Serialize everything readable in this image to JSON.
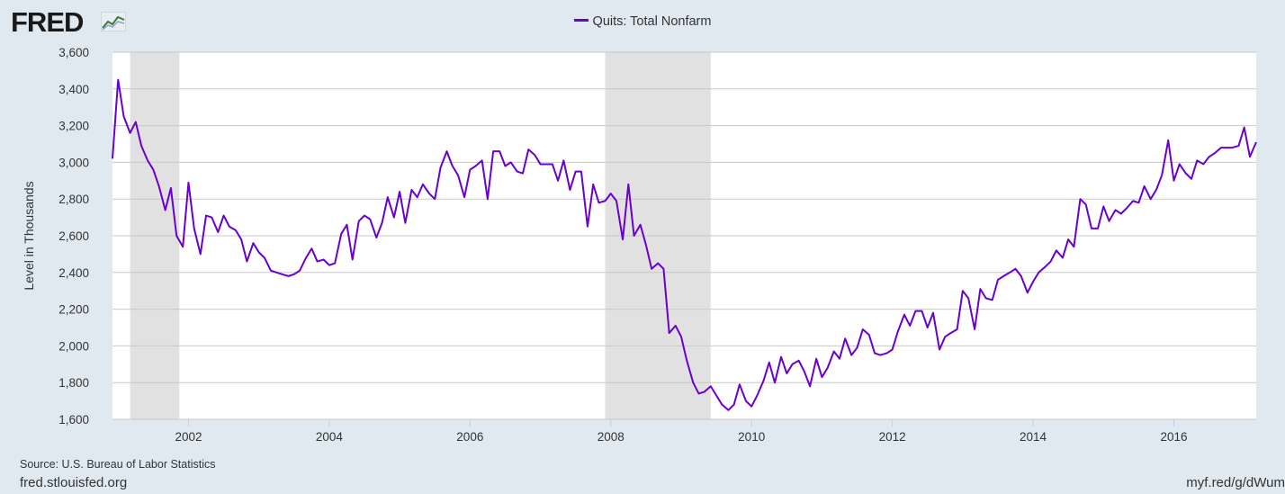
{
  "brand": {
    "logo_text": "FRED",
    "site": "fred.stlouisfed.org",
    "short_link": "myf.red/g/dWum"
  },
  "source_note": "Source: U.S. Bureau of Labor Statistics",
  "colors": {
    "series": "#6a00cc",
    "recession": "#e1e1e1",
    "background": "#e1e9f0",
    "plot": "#ffffff",
    "grid": "#c8c8c8"
  },
  "chart_data": {
    "type": "line",
    "title": "",
    "ylabel": "Level in Thousands",
    "xlabel": "",
    "ylim": [
      1600,
      3600
    ],
    "xlim": [
      2000.92,
      2017.17
    ],
    "yticks": [
      "1,600",
      "1,800",
      "2,000",
      "2,200",
      "2,400",
      "2,600",
      "2,800",
      "3,000",
      "3,200",
      "3,400",
      "3,600"
    ],
    "ytick_values": [
      1600,
      1800,
      2000,
      2200,
      2400,
      2600,
      2800,
      3000,
      3200,
      3400,
      3600
    ],
    "xticks": [
      "2002",
      "2004",
      "2006",
      "2008",
      "2010",
      "2012",
      "2014",
      "2016"
    ],
    "xtick_values": [
      2002,
      2004,
      2006,
      2008,
      2010,
      2012,
      2014,
      2016
    ],
    "grid": "horizontal",
    "legend_placement": "top-center",
    "recessions": [
      [
        2001.17,
        2001.87
      ],
      [
        2007.92,
        2009.42
      ]
    ],
    "series": [
      {
        "name": "Quits: Total Nonfarm",
        "x": [
          2000.92,
          2001.0,
          2001.08,
          2001.17,
          2001.25,
          2001.33,
          2001.42,
          2001.5,
          2001.58,
          2001.67,
          2001.75,
          2001.83,
          2001.92,
          2002.0,
          2002.08,
          2002.17,
          2002.25,
          2002.33,
          2002.42,
          2002.5,
          2002.58,
          2002.67,
          2002.75,
          2002.83,
          2002.92,
          2003.0,
          2003.08,
          2003.17,
          2003.25,
          2003.33,
          2003.42,
          2003.5,
          2003.58,
          2003.67,
          2003.75,
          2003.83,
          2003.92,
          2004.0,
          2004.08,
          2004.17,
          2004.25,
          2004.33,
          2004.42,
          2004.5,
          2004.58,
          2004.67,
          2004.75,
          2004.83,
          2004.92,
          2005.0,
          2005.08,
          2005.17,
          2005.25,
          2005.33,
          2005.42,
          2005.5,
          2005.58,
          2005.67,
          2005.75,
          2005.83,
          2005.92,
          2006.0,
          2006.08,
          2006.17,
          2006.25,
          2006.33,
          2006.42,
          2006.5,
          2006.58,
          2006.67,
          2006.75,
          2006.83,
          2006.92,
          2007.0,
          2007.08,
          2007.17,
          2007.25,
          2007.33,
          2007.42,
          2007.5,
          2007.58,
          2007.67,
          2007.75,
          2007.83,
          2007.92,
          2008.0,
          2008.08,
          2008.17,
          2008.25,
          2008.33,
          2008.42,
          2008.5,
          2008.58,
          2008.67,
          2008.75,
          2008.83,
          2008.92,
          2009.0,
          2009.08,
          2009.17,
          2009.25,
          2009.33,
          2009.42,
          2009.5,
          2009.58,
          2009.67,
          2009.75,
          2009.83,
          2009.92,
          2010.0,
          2010.08,
          2010.17,
          2010.25,
          2010.33,
          2010.42,
          2010.5,
          2010.58,
          2010.67,
          2010.75,
          2010.83,
          2010.92,
          2011.0,
          2011.08,
          2011.17,
          2011.25,
          2011.33,
          2011.42,
          2011.5,
          2011.58,
          2011.67,
          2011.75,
          2011.83,
          2011.92,
          2012.0,
          2012.08,
          2012.17,
          2012.25,
          2012.33,
          2012.42,
          2012.5,
          2012.58,
          2012.67,
          2012.75,
          2012.83,
          2012.92,
          2013.0,
          2013.08,
          2013.17,
          2013.25,
          2013.33,
          2013.42,
          2013.5,
          2013.58,
          2013.67,
          2013.75,
          2013.83,
          2013.92,
          2014.0,
          2014.08,
          2014.17,
          2014.25,
          2014.33,
          2014.42,
          2014.5,
          2014.58,
          2014.67,
          2014.75,
          2014.83,
          2014.92,
          2015.0,
          2015.08,
          2015.17,
          2015.25,
          2015.33,
          2015.42,
          2015.5,
          2015.58,
          2015.67,
          2015.75,
          2015.83,
          2015.92,
          2016.0,
          2016.08,
          2016.17,
          2016.25,
          2016.33,
          2016.42,
          2016.5,
          2016.58,
          2016.67,
          2016.75,
          2016.83,
          2016.92,
          2017.0,
          2017.08,
          2017.17
        ],
        "values": [
          3020,
          3450,
          3250,
          3160,
          3220,
          3090,
          3010,
          2960,
          2870,
          2740,
          2860,
          2600,
          2540,
          2890,
          2640,
          2500,
          2710,
          2700,
          2620,
          2710,
          2650,
          2630,
          2580,
          2460,
          2560,
          2510,
          2480,
          2410,
          2400,
          2390,
          2380,
          2390,
          2410,
          2480,
          2530,
          2460,
          2470,
          2440,
          2450,
          2610,
          2660,
          2470,
          2680,
          2710,
          2690,
          2590,
          2670,
          2810,
          2700,
          2840,
          2670,
          2850,
          2810,
          2880,
          2830,
          2800,
          2970,
          3060,
          2980,
          2930,
          2810,
          2960,
          2980,
          3010,
          2800,
          3060,
          3060,
          2980,
          3000,
          2950,
          2940,
          3070,
          3040,
          2990,
          2990,
          2990,
          2900,
          3010,
          2850,
          2950,
          2950,
          2650,
          2880,
          2780,
          2790,
          2830,
          2790,
          2580,
          2880,
          2600,
          2660,
          2550,
          2420,
          2450,
          2420,
          2070,
          2110,
          2050,
          1920,
          1800,
          1740,
          1750,
          1780,
          1730,
          1680,
          1650,
          1680,
          1790,
          1700,
          1670,
          1730,
          1810,
          1910,
          1800,
          1940,
          1850,
          1900,
          1920,
          1860,
          1780,
          1930,
          1830,
          1880,
          1970,
          1930,
          2040,
          1950,
          1990,
          2090,
          2060,
          1960,
          1950,
          1960,
          1980,
          2080,
          2170,
          2110,
          2190,
          2190,
          2100,
          2180,
          1980,
          2050,
          2070,
          2090,
          2300,
          2260,
          2090,
          2310,
          2260,
          2250,
          2360,
          2380,
          2400,
          2420,
          2380,
          2290,
          2350,
          2400,
          2430,
          2460,
          2520,
          2480,
          2580,
          2540,
          2800,
          2770,
          2640,
          2640,
          2760,
          2680,
          2740,
          2720,
          2750,
          2790,
          2780,
          2870,
          2800,
          2850,
          2930,
          3120,
          2900,
          2990,
          2940,
          2910,
          3010,
          2990,
          3030,
          3050,
          3080,
          3080,
          3080,
          3090,
          3190,
          3030,
          3110
        ]
      }
    ]
  }
}
